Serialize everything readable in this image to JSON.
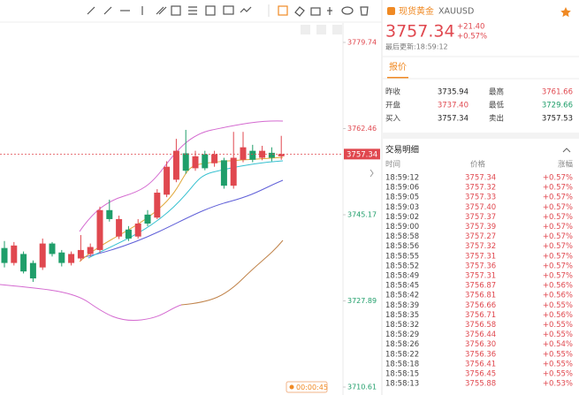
{
  "header": {
    "name": "现货黄金",
    "symbol": "XAUUSD",
    "price": "3757.34",
    "change": "+21.40",
    "change_pct": "+0.57%",
    "updated": "最后更新:18:59:12"
  },
  "tab": "报价",
  "quote": {
    "rows": [
      [
        "昨收",
        "3735.94",
        "最高",
        "3761.66"
      ],
      [
        "开盘",
        "3737.40",
        "最低",
        "3729.66"
      ],
      [
        "买入",
        "3757.34",
        "卖出",
        "3757.53"
      ]
    ]
  },
  "trades": {
    "title": "交易明细",
    "headers": [
      "时间",
      "价格",
      "涨幅"
    ],
    "rows": [
      [
        "18:59:12",
        "3757.34",
        "+0.57%"
      ],
      [
        "18:59:06",
        "3757.32",
        "+0.57%"
      ],
      [
        "18:59:05",
        "3757.33",
        "+0.57%"
      ],
      [
        "18:59:03",
        "3757.40",
        "+0.57%"
      ],
      [
        "18:59:02",
        "3757.37",
        "+0.57%"
      ],
      [
        "18:59:00",
        "3757.39",
        "+0.57%"
      ],
      [
        "18:58:58",
        "3757.27",
        "+0.57%"
      ],
      [
        "18:58:56",
        "3757.32",
        "+0.57%"
      ],
      [
        "18:58:55",
        "3757.31",
        "+0.57%"
      ],
      [
        "18:58:52",
        "3757.36",
        "+0.57%"
      ],
      [
        "18:58:49",
        "3757.31",
        "+0.57%"
      ],
      [
        "18:58:45",
        "3756.87",
        "+0.56%"
      ],
      [
        "18:58:42",
        "3756.81",
        "+0.56%"
      ],
      [
        "18:58:39",
        "3756.66",
        "+0.55%"
      ],
      [
        "18:58:35",
        "3756.71",
        "+0.56%"
      ],
      [
        "18:58:32",
        "3756.58",
        "+0.55%"
      ],
      [
        "18:58:29",
        "3756.44",
        "+0.55%"
      ],
      [
        "18:58:26",
        "3756.30",
        "+0.54%"
      ],
      [
        "18:58:22",
        "3756.36",
        "+0.55%"
      ],
      [
        "18:58:18",
        "3756.41",
        "+0.55%"
      ],
      [
        "18:58:15",
        "3756.45",
        "+0.55%"
      ],
      [
        "18:58:13",
        "3755.88",
        "+0.53%"
      ]
    ]
  },
  "chart": {
    "type": "candlestick",
    "ylim": [
      3710.61,
      3779.74
    ],
    "yticks": [
      3779.74,
      3762.46,
      3745.17,
      3727.89,
      3710.61
    ],
    "last_price": 3757.34,
    "countdown": "00:00:45",
    "up_color": "#e0484f",
    "down_color": "#1f9e6a",
    "candles": [
      {
        "open": 3738.5,
        "high": 3739.9,
        "low": 3734.6,
        "close": 3735.5
      },
      {
        "open": 3735.5,
        "high": 3739.7,
        "low": 3735.0,
        "close": 3739.0
      },
      {
        "open": 3737.3,
        "high": 3737.8,
        "low": 3733.4,
        "close": 3733.8
      },
      {
        "open": 3735.5,
        "high": 3736.0,
        "low": 3731.7,
        "close": 3732.4
      },
      {
        "open": 3734.6,
        "high": 3740.4,
        "low": 3734.1,
        "close": 3739.4
      },
      {
        "open": 3739.4,
        "high": 3739.7,
        "low": 3736.8,
        "close": 3737.3
      },
      {
        "open": 3737.6,
        "high": 3738.1,
        "low": 3734.8,
        "close": 3735.5
      },
      {
        "open": 3735.5,
        "high": 3737.8,
        "low": 3735.0,
        "close": 3737.3
      },
      {
        "open": 3736.4,
        "high": 3741.1,
        "low": 3735.9,
        "close": 3738.1
      },
      {
        "open": 3737.3,
        "high": 3739.4,
        "low": 3736.8,
        "close": 3738.7
      },
      {
        "open": 3738.1,
        "high": 3746.8,
        "low": 3737.6,
        "close": 3746.1
      },
      {
        "open": 3746.1,
        "high": 3748.2,
        "low": 3743.8,
        "close": 3744.3
      },
      {
        "open": 3740.8,
        "high": 3745.0,
        "low": 3740.3,
        "close": 3744.3
      },
      {
        "open": 3742.2,
        "high": 3742.9,
        "low": 3739.9,
        "close": 3740.4
      },
      {
        "open": 3740.8,
        "high": 3744.3,
        "low": 3740.4,
        "close": 3743.4
      },
      {
        "open": 3745.2,
        "high": 3746.1,
        "low": 3742.9,
        "close": 3743.4
      },
      {
        "open": 3744.6,
        "high": 3750.3,
        "low": 3744.3,
        "close": 3749.6
      },
      {
        "open": 3749.2,
        "high": 3755.9,
        "low": 3748.7,
        "close": 3754.8
      },
      {
        "open": 3752.2,
        "high": 3760.4,
        "low": 3751.7,
        "close": 3758.0
      },
      {
        "open": 3757.5,
        "high": 3762.2,
        "low": 3753.4,
        "close": 3754.0
      },
      {
        "open": 3754.5,
        "high": 3758.0,
        "low": 3754.0,
        "close": 3756.9
      },
      {
        "open": 3757.3,
        "high": 3758.0,
        "low": 3754.1,
        "close": 3754.5
      },
      {
        "open": 3755.5,
        "high": 3758.0,
        "low": 3754.8,
        "close": 3757.3
      },
      {
        "open": 3756.1,
        "high": 3756.6,
        "low": 3750.4,
        "close": 3751.0
      },
      {
        "open": 3751.0,
        "high": 3761.8,
        "low": 3750.4,
        "close": 3756.6
      },
      {
        "open": 3756.2,
        "high": 3761.8,
        "low": 3755.7,
        "close": 3758.7
      },
      {
        "open": 3758.0,
        "high": 3759.2,
        "low": 3755.7,
        "close": 3756.2
      },
      {
        "open": 3756.6,
        "high": 3759.0,
        "low": 3756.1,
        "close": 3758.0
      },
      {
        "open": 3757.6,
        "high": 3758.7,
        "low": 3755.9,
        "close": 3756.6
      },
      {
        "open": 3756.9,
        "high": 3761.0,
        "low": 3756.2,
        "close": 3757.34
      }
    ]
  }
}
